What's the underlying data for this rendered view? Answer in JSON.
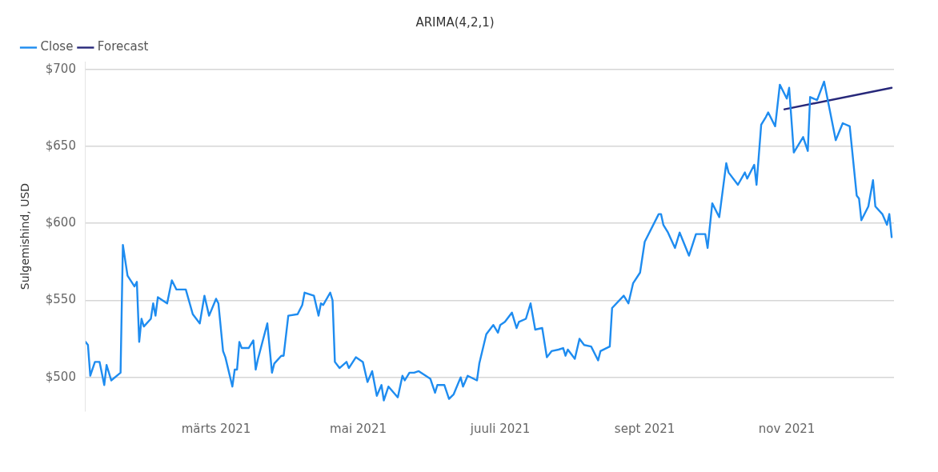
{
  "chart_data": {
    "type": "line",
    "title": "ARIMA(4,2,1)",
    "ylabel": "Sulgemishind, USD",
    "xlim": [
      "2021-01-04",
      "2021-12-17"
    ],
    "xticks": [
      {
        "value": "2021-03-01",
        "label": "märts 2021"
      },
      {
        "value": "2021-05-01",
        "label": "mai 2021"
      },
      {
        "value": "2021-07-01",
        "label": "juuli 2021"
      },
      {
        "value": "2021-09-01",
        "label": "sept 2021"
      },
      {
        "value": "2021-11-01",
        "label": "nov 2021"
      }
    ],
    "ylim": [
      478,
      705
    ],
    "yticks": [
      {
        "value": 500,
        "label": "$500"
      },
      {
        "value": 550,
        "label": "$550"
      },
      {
        "value": 600,
        "label": "$600"
      },
      {
        "value": 650,
        "label": "$650"
      },
      {
        "value": 700,
        "label": "$700"
      }
    ],
    "grid": "y",
    "legend": "top left",
    "marker": "none",
    "line_style": "solid",
    "series": [
      {
        "name": "Close",
        "color": "#1e8cf0",
        "x": [
          "2021-01-04",
          "2021-01-05",
          "2021-01-06",
          "2021-01-08",
          "2021-01-10",
          "2021-01-12",
          "2021-01-13",
          "2021-01-15",
          "2021-01-19",
          "2021-01-20",
          "2021-01-22",
          "2021-01-25",
          "2021-01-26",
          "2021-01-27",
          "2021-01-28",
          "2021-01-29",
          "2021-02-01",
          "2021-02-02",
          "2021-02-03",
          "2021-02-04",
          "2021-02-08",
          "2021-02-10",
          "2021-02-12",
          "2021-02-16",
          "2021-02-19",
          "2021-02-22",
          "2021-02-24",
          "2021-02-26",
          "2021-03-01",
          "2021-03-02",
          "2021-03-04",
          "2021-03-05",
          "2021-03-08",
          "2021-03-09",
          "2021-03-10",
          "2021-03-11",
          "2021-03-12",
          "2021-03-15",
          "2021-03-17",
          "2021-03-18",
          "2021-03-19",
          "2021-03-23",
          "2021-03-25",
          "2021-03-26",
          "2021-03-29",
          "2021-03-30",
          "2021-04-01",
          "2021-04-05",
          "2021-04-07",
          "2021-04-08",
          "2021-04-12",
          "2021-04-14",
          "2021-04-15",
          "2021-04-16",
          "2021-04-19",
          "2021-04-20",
          "2021-04-21",
          "2021-04-23",
          "2021-04-26",
          "2021-04-27",
          "2021-04-30",
          "2021-05-03",
          "2021-05-05",
          "2021-05-07",
          "2021-05-09",
          "2021-05-11",
          "2021-05-12",
          "2021-05-14",
          "2021-05-18",
          "2021-05-20",
          "2021-05-21",
          "2021-05-23",
          "2021-05-25",
          "2021-05-27",
          "2021-06-01",
          "2021-06-03",
          "2021-06-04",
          "2021-06-07",
          "2021-06-09",
          "2021-06-11",
          "2021-06-14",
          "2021-06-15",
          "2021-06-17",
          "2021-06-21",
          "2021-06-22",
          "2021-06-25",
          "2021-06-28",
          "2021-06-30",
          "2021-07-01",
          "2021-07-03",
          "2021-07-06",
          "2021-07-08",
          "2021-07-09",
          "2021-07-12",
          "2021-07-14",
          "2021-07-16",
          "2021-07-19",
          "2021-07-21",
          "2021-07-23",
          "2021-07-26",
          "2021-07-28",
          "2021-07-29",
          "2021-07-30",
          "2021-08-02",
          "2021-08-04",
          "2021-08-06",
          "2021-08-09",
          "2021-08-12",
          "2021-08-13",
          "2021-08-17",
          "2021-08-18",
          "2021-08-23",
          "2021-08-25",
          "2021-08-27",
          "2021-08-30",
          "2021-09-01",
          "2021-09-02",
          "2021-09-07",
          "2021-09-08",
          "2021-09-09",
          "2021-09-11",
          "2021-09-14",
          "2021-09-16",
          "2021-09-20",
          "2021-09-23",
          "2021-09-27",
          "2021-09-28",
          "2021-09-30",
          "2021-10-03",
          "2021-10-06",
          "2021-10-07",
          "2021-10-11",
          "2021-10-14",
          "2021-10-15",
          "2021-10-18",
          "2021-10-19",
          "2021-10-21",
          "2021-10-23",
          "2021-10-24",
          "2021-10-27",
          "2021-10-29",
          "2021-11-01",
          "2021-11-02",
          "2021-11-04",
          "2021-11-08",
          "2021-11-10",
          "2021-11-11",
          "2021-11-14",
          "2021-11-17",
          "2021-11-22",
          "2021-11-25",
          "2021-11-28",
          "2021-12-01",
          "2021-12-02",
          "2021-12-03",
          "2021-12-06",
          "2021-12-08",
          "2021-12-09",
          "2021-12-12",
          "2021-12-14",
          "2021-12-15",
          "2021-12-16"
        ],
        "values": [
          523,
          521,
          501,
          510,
          510,
          495,
          508,
          498,
          503,
          586,
          566,
          559,
          562,
          523,
          538,
          533,
          538,
          548,
          540,
          552,
          548,
          563,
          557,
          557,
          541,
          535,
          553,
          540,
          551,
          548,
          517,
          513,
          494,
          505,
          505,
          523,
          519,
          519,
          524,
          505,
          512,
          535,
          503,
          509,
          514,
          514,
          540,
          541,
          547,
          555,
          553,
          540,
          548,
          547,
          555,
          550,
          510,
          506,
          510,
          506,
          513,
          510,
          497,
          504,
          488,
          495,
          485,
          494,
          487,
          501,
          498,
          503,
          503,
          504,
          499,
          490,
          495,
          495,
          486,
          489,
          500,
          494,
          501,
          498,
          509,
          528,
          534,
          529,
          534,
          536,
          542,
          532,
          536,
          538,
          548,
          531,
          532,
          513,
          517,
          518,
          519,
          514,
          518,
          512,
          525,
          521,
          520,
          511,
          517,
          520,
          545,
          553,
          548,
          561,
          568,
          588,
          591,
          606,
          606,
          599,
          594,
          584,
          594,
          579,
          593,
          593,
          584,
          613,
          604,
          639,
          633,
          625,
          633,
          629,
          638,
          625,
          664,
          669,
          672,
          663,
          690,
          681,
          688,
          646,
          656,
          647,
          682,
          680,
          692,
          654,
          665,
          663,
          618,
          616,
          602,
          611,
          628,
          611,
          606,
          599,
          606,
          591
        ]
      },
      {
        "name": "Forecast",
        "color": "#27287a",
        "x": [
          "2021-10-31",
          "2021-12-16"
        ],
        "values": [
          674,
          688
        ]
      }
    ]
  }
}
